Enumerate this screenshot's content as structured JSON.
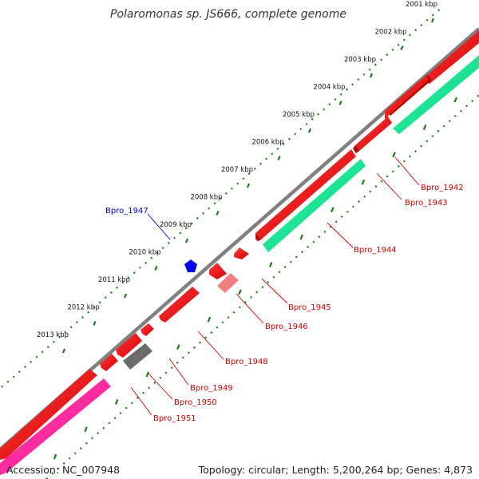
{
  "title": "Polaromonas sp. JS666, complete genome",
  "footer": {
    "accession": "Accession: NC_007948",
    "stats": "Topology: circular; Length: 5,200,264 bp; Genes: 4,873"
  },
  "colors": {
    "backbone": "#808080",
    "tick_green": "#1a7a1a",
    "gene_red": "#ff0000",
    "gene_red_light": "#ff8080",
    "gene_green": "#00e68a",
    "gene_gray": "#707070",
    "gene_pink": "#ff2ca0",
    "gene_blue": "#0000ee",
    "label_red": "#cc0000",
    "label_blue": "#0000cc"
  },
  "ruler_labels": [
    "2001 kbp",
    "2002 kbp",
    "2003 kbp",
    "2004 kbp",
    "2005 kbp",
    "2006 kbp",
    "2007 kbp",
    "2008 kbp",
    "2009 kbp",
    "2010 kbp",
    "2011 kbp",
    "2012 kbp",
    "2013 kbp"
  ],
  "gene_labels": [
    {
      "text": "Bpro_1942",
      "color": "red"
    },
    {
      "text": "Bpro_1943",
      "color": "red"
    },
    {
      "text": "Bpro_1944",
      "color": "red"
    },
    {
      "text": "Bpro_1945",
      "color": "red"
    },
    {
      "text": "Bpro_1946",
      "color": "red"
    },
    {
      "text": "Bpro_1947",
      "color": "blue"
    },
    {
      "text": "Bpro_1948",
      "color": "red"
    },
    {
      "text": "Bpro_1949",
      "color": "red"
    },
    {
      "text": "Bpro_1950",
      "color": "red"
    },
    {
      "text": "Bpro_1951",
      "color": "red"
    }
  ]
}
